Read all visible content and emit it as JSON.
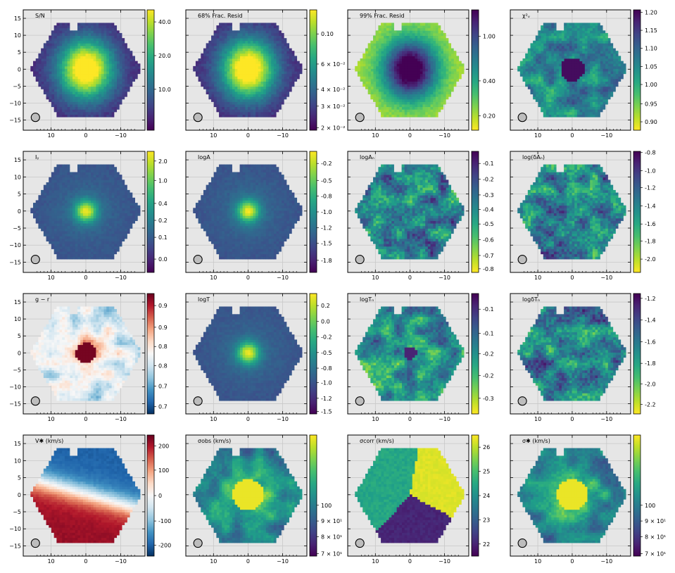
{
  "chart_data": {
    "type": "heatmap",
    "layout": "4x4 grid of hexagonal IFU maps",
    "x_axis": {
      "ticks": [
        10,
        0,
        -10
      ],
      "labels": [
        "10",
        "0",
        "−10"
      ],
      "reversed": true,
      "range": [
        18,
        -17
      ]
    },
    "y_axis": {
      "ticks": [
        15,
        10,
        5,
        0,
        -5,
        -10,
        -15
      ],
      "labels": [
        "15",
        "10",
        "5",
        "0",
        "−5",
        "−10",
        "−15"
      ],
      "range": [
        -18,
        17.5
      ]
    },
    "beam_marker": "circle (lower-left)",
    "panels": [
      {
        "title": "S/N",
        "cmap": "viridis",
        "pattern": "center",
        "cb_ticks": [
          "40.0",
          "20.0",
          "10.0"
        ],
        "cb_fracs": [
          0.1,
          0.38,
          0.66
        ]
      },
      {
        "title": "68% Frac. Resid",
        "cmap": "viridis",
        "pattern": "center",
        "cb_ticks": [
          "0.10",
          "6 × 10⁻²",
          "4 × 10⁻²",
          "3 × 10⁻²",
          "2 × 10⁻²"
        ],
        "cb_fracs": [
          0.2,
          0.45,
          0.66,
          0.8,
          0.98
        ]
      },
      {
        "title": "99% Frac. Resid",
        "cmap": "viridis_r",
        "pattern": "center",
        "cb_ticks": [
          "1.00",
          "0.40",
          "0.20"
        ],
        "cb_fracs": [
          0.22,
          0.59,
          0.88
        ]
      },
      {
        "title": "χ²ᵥ",
        "cmap": "viridis_r",
        "pattern": "hole",
        "cb_ticks": [
          "1.20",
          "1.15",
          "1.10",
          "1.05",
          "1.00",
          "0.95",
          "0.90"
        ],
        "cb_fracs": [
          0.02,
          0.17,
          0.32,
          0.47,
          0.62,
          0.78,
          0.93
        ]
      },
      {
        "title": "Iᵧ",
        "cmap": "viridis",
        "pattern": "peak",
        "cb_ticks": [
          "2.0",
          "1.0",
          "0.4",
          "0.2",
          "0.1",
          "0.0"
        ],
        "cb_fracs": [
          0.08,
          0.24,
          0.43,
          0.57,
          0.71,
          0.89
        ]
      },
      {
        "title": "logA",
        "cmap": "viridis",
        "pattern": "peak",
        "cb_ticks": [
          "-0.2",
          "-0.5",
          "-0.8",
          "-1.0",
          "-1.2",
          "-1.5",
          "-1.8"
        ],
        "cb_fracs": [
          0.1,
          0.24,
          0.37,
          0.5,
          0.63,
          0.76,
          0.9
        ]
      },
      {
        "title": "logAₙ",
        "cmap": "viridis_r",
        "pattern": "noise",
        "cb_ticks": [
          "-0.1",
          "-0.2",
          "-0.3",
          "-0.4",
          "-0.5",
          "-0.6",
          "-0.7",
          "-0.8"
        ],
        "cb_fracs": [
          0.1,
          0.23,
          0.36,
          0.48,
          0.6,
          0.73,
          0.86,
          0.97
        ]
      },
      {
        "title": "log(δAₙ)",
        "cmap": "viridis_r",
        "pattern": "noise",
        "cb_ticks": [
          "-0.8",
          "-1.0",
          "-1.2",
          "-1.4",
          "-1.6",
          "-1.8",
          "-2.0"
        ],
        "cb_fracs": [
          0.01,
          0.16,
          0.3,
          0.45,
          0.6,
          0.74,
          0.89
        ]
      },
      {
        "title": "g − r",
        "cmap": "RdBu_r",
        "pattern": "gminr",
        "cb_ticks": [
          "0.9",
          "0.9",
          "0.8",
          "0.8",
          "0.7",
          "0.7"
        ],
        "cb_fracs": [
          0.1,
          0.28,
          0.44,
          0.6,
          0.77,
          0.94
        ]
      },
      {
        "title": "logT",
        "cmap": "viridis",
        "pattern": "peak",
        "cb_ticks": [
          "0.2",
          "0.0",
          "-0.2",
          "-0.5",
          "-0.8",
          "-1.0",
          "-1.2",
          "-1.5"
        ],
        "cb_fracs": [
          0.1,
          0.23,
          0.36,
          0.49,
          0.62,
          0.74,
          0.87,
          0.98
        ]
      },
      {
        "title": "logTₙ",
        "cmap": "viridis_r",
        "pattern": "noisehole",
        "cb_ticks": [
          "-0.1",
          "-0.1",
          "-0.2",
          "-0.2",
          "-0.3"
        ],
        "cb_fracs": [
          0.13,
          0.33,
          0.5,
          0.68,
          0.87
        ]
      },
      {
        "title": "logδTₙ",
        "cmap": "viridis_r",
        "pattern": "noise",
        "cb_ticks": [
          "-1.2",
          "-1.4",
          "-1.6",
          "-1.8",
          "-2.0",
          "-2.2"
        ],
        "cb_fracs": [
          0.04,
          0.22,
          0.4,
          0.58,
          0.75,
          0.92
        ]
      },
      {
        "title": "V✱ (km/s)",
        "cmap": "RdBu_r",
        "pattern": "velocity",
        "cb_ticks": [
          "200",
          "100",
          "0",
          "-100",
          "-200"
        ],
        "cb_fracs": [
          0.09,
          0.29,
          0.5,
          0.71,
          0.91
        ]
      },
      {
        "title": "σobs (km/s)",
        "cmap": "viridis",
        "pattern": "dispersion",
        "cb_ticks": [
          "100",
          "9 × 10¹",
          "8 × 10¹",
          "7 × 10¹"
        ],
        "cb_fracs": [
          0.58,
          0.71,
          0.84,
          0.98
        ]
      },
      {
        "title": "σcorr (km/s)",
        "cmap": "viridis",
        "pattern": "sectors",
        "cb_ticks": [
          "26",
          "25",
          "24",
          "23",
          "22"
        ],
        "cb_fracs": [
          0.1,
          0.3,
          0.5,
          0.7,
          0.9
        ]
      },
      {
        "title": "σ✱ (km/s)",
        "cmap": "viridis",
        "pattern": "dispersion",
        "cb_ticks": [
          "100",
          "9 × 10¹",
          "8 × 10¹",
          "7 × 10¹"
        ],
        "cb_fracs": [
          0.58,
          0.71,
          0.84,
          0.98
        ]
      }
    ]
  }
}
